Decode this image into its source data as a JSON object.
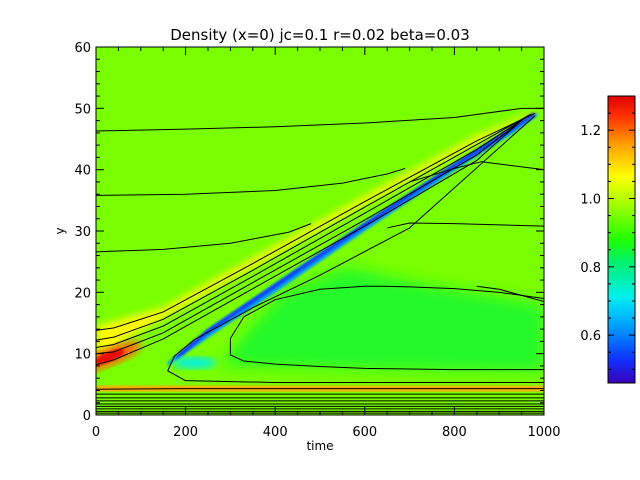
{
  "chart_data": {
    "type": "heatmap",
    "title": "Density (x=0) jc=0.1 r=0.02 beta=0.03",
    "xlabel": "time",
    "ylabel": "y",
    "xlim": [
      0,
      1000
    ],
    "ylim": [
      0,
      60
    ],
    "x_ticks": [
      0,
      200,
      400,
      600,
      800,
      1000
    ],
    "y_ticks": [
      0,
      10,
      20,
      30,
      40,
      50,
      60
    ],
    "colorbar": {
      "range": [
        0.46,
        1.3
      ],
      "ticks": [
        0.6,
        0.8,
        1.0,
        1.2
      ],
      "colormap": "rainbow (blue-low, red-high)"
    },
    "background_density": 0.95,
    "features": [
      {
        "name": "upper dense ridge",
        "value": 1.07,
        "path_time": [
          0,
          1000
        ],
        "path_y": [
          11,
          49.5
        ]
      },
      {
        "name": "rarefied band",
        "value": 0.52,
        "path_time": [
          150,
          980
        ],
        "path_y": [
          8,
          49
        ]
      },
      {
        "name": "density peak",
        "value": 1.28,
        "time": 30,
        "y": 9.5
      },
      {
        "name": "cavity",
        "value": 0.72,
        "time": 220,
        "y": 8.5
      },
      {
        "name": "depleted region",
        "value": 0.85,
        "time": [
          280,
          1000
        ],
        "y": [
          7,
          21
        ]
      },
      {
        "name": "enhanced strip",
        "value": 1.15,
        "time": [
          0,
          1000
        ],
        "y": [
          3.8,
          4.8
        ]
      }
    ],
    "contours": [
      {
        "time": [
          0,
          200,
          400,
          600,
          800,
          950,
          1000
        ],
        "y": [
          46.3,
          46.6,
          47.0,
          47.6,
          48.5,
          50.0,
          50.0
        ]
      },
      {
        "time": [
          0,
          200,
          400,
          550,
          650,
          690
        ],
        "y": [
          35.8,
          36.0,
          36.6,
          37.8,
          39.3,
          40.2
        ]
      },
      {
        "time": [
          0,
          150,
          300,
          430,
          480
        ],
        "y": [
          26.6,
          27.0,
          28.0,
          29.8,
          31.2
        ]
      },
      {
        "time": [
          700,
          800,
          860,
          1000
        ],
        "y": [
          38.0,
          40.2,
          41.3,
          40.0
        ]
      },
      {
        "time": [
          650,
          700,
          800,
          1000
        ],
        "y": [
          30.5,
          31.3,
          31.2,
          30.8
        ]
      },
      {
        "time": [
          850,
          900,
          1000
        ],
        "y": [
          21.0,
          20.5,
          18.5
        ]
      },
      {
        "time": [
          1000,
          900,
          800,
          700,
          640,
          600,
          500,
          400,
          330,
          300,
          300,
          330,
          400,
          500,
          600,
          700,
          800,
          900,
          1000
        ],
        "y": [
          19.0,
          20.0,
          20.6,
          20.9,
          21.0,
          21.0,
          20.5,
          18.8,
          16.0,
          12.5,
          9.8,
          8.8,
          8.3,
          7.9,
          7.6,
          7.5,
          7.4,
          7.4,
          7.4
        ]
      },
      {
        "time": [
          1000,
          700,
          400,
          200,
          160,
          175,
          220,
          350,
          500,
          700,
          980
        ],
        "y": [
          5.3,
          5.3,
          5.3,
          5.6,
          7.2,
          9.6,
          12.3,
          17.5,
          22.8,
          30.5,
          48.8
        ]
      },
      {
        "time": [
          0,
          200,
          500,
          800,
          1000
        ],
        "y": [
          4.2,
          4.3,
          4.3,
          4.3,
          4.3
        ]
      },
      {
        "time": [
          0,
          500,
          1000
        ],
        "y": [
          3.4,
          3.4,
          3.4
        ]
      },
      {
        "time": [
          0,
          500,
          1000
        ],
        "y": [
          2.8,
          2.8,
          2.8
        ]
      },
      {
        "time": [
          0,
          500,
          1000
        ],
        "y": [
          2.3,
          2.3,
          2.3
        ]
      },
      {
        "time": [
          0,
          500,
          1000
        ],
        "y": [
          1.8,
          1.8,
          1.8
        ]
      },
      {
        "time": [
          0,
          500,
          1000
        ],
        "y": [
          1.4,
          1.4,
          1.4
        ]
      },
      {
        "time": [
          0,
          500,
          1000
        ],
        "y": [
          1.0,
          1.0,
          1.0
        ]
      },
      {
        "time": [
          0,
          500,
          1000
        ],
        "y": [
          0.6,
          0.6,
          0.6
        ]
      },
      {
        "time": [
          0,
          500,
          1000
        ],
        "y": [
          0.3,
          0.3,
          0.3
        ]
      },
      {
        "time": [
          0,
          40,
          150,
          350,
          600,
          850,
          980
        ],
        "y": [
          13.8,
          14.2,
          16.8,
          24.7,
          34.8,
          44.7,
          49.2
        ]
      },
      {
        "time": [
          0,
          40,
          150,
          350,
          600,
          850,
          970
        ],
        "y": [
          12.2,
          12.7,
          15.6,
          23.6,
          33.9,
          44.1,
          49.0
        ]
      },
      {
        "time": [
          0,
          40,
          150,
          350,
          600,
          850,
          965
        ],
        "y": [
          11.0,
          11.5,
          14.5,
          22.6,
          32.9,
          43.3,
          48.8
        ]
      },
      {
        "time": [
          0,
          40,
          150,
          350,
          600,
          850,
          960
        ],
        "y": [
          10.0,
          10.3,
          13.4,
          21.6,
          31.8,
          42.4,
          48.6
        ]
      },
      {
        "time": [
          0,
          40,
          150,
          350,
          600,
          850,
          955
        ],
        "y": [
          8.2,
          9.0,
          12.4,
          20.6,
          30.8,
          41.5,
          48.4
        ]
      }
    ]
  }
}
